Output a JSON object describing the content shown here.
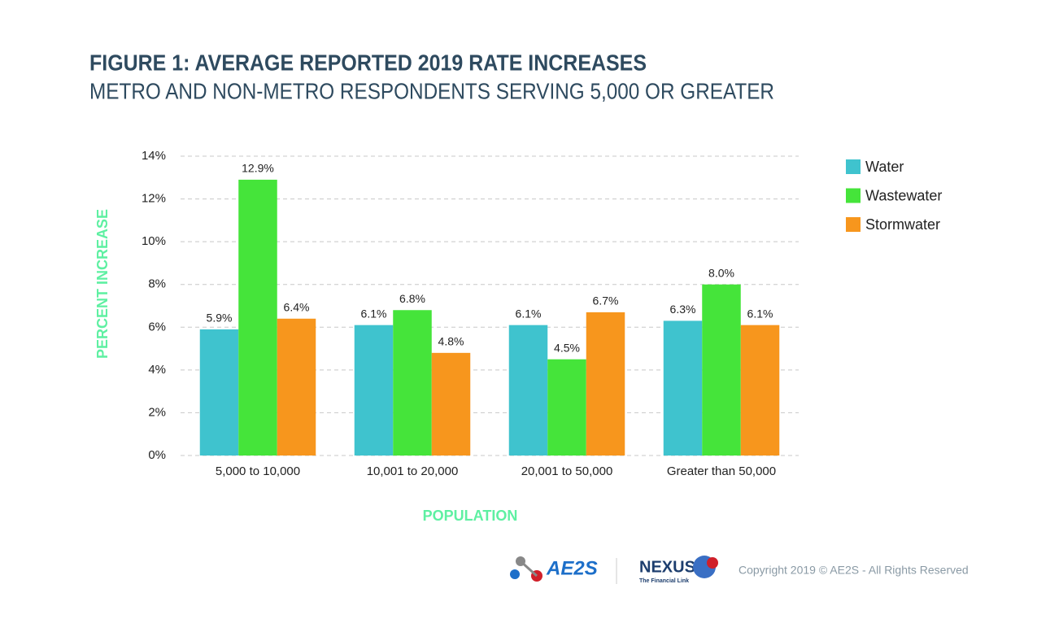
{
  "chart_data": {
    "type": "bar",
    "title": "FIGURE 1: AVERAGE REPORTED 2019 RATE INCREASES",
    "subtitle": "METRO AND NON-METRO RESPONDENTS SERVING 5,000 OR GREATER",
    "x_label": "POPULATION",
    "y_label": "PERCENT INCREASE",
    "categories": [
      "5,000 to 10,000",
      "10,001 to 20,000",
      "20,001 to 50,000",
      "Greater than 50,000"
    ],
    "series": [
      {
        "name": "Water",
        "color": "#3fc3ce",
        "values": [
          5.9,
          6.1,
          6.1,
          6.3
        ],
        "value_labels": [
          "5.9%",
          "6.1%",
          "6.1%",
          "6.3%"
        ]
      },
      {
        "name": "Wastewater",
        "color": "#45e43a",
        "values": [
          12.9,
          6.8,
          4.5,
          8.0
        ],
        "value_labels": [
          "12.9%",
          "6.8%",
          "4.5%",
          "8.0%"
        ]
      },
      {
        "name": "Stormwater",
        "color": "#f7961d",
        "values": [
          6.4,
          4.8,
          6.7,
          6.1
        ],
        "value_labels": [
          "6.4%",
          "4.8%",
          "6.7%",
          "6.1%"
        ]
      }
    ],
    "ylim": [
      0,
      14
    ],
    "yticks": [
      {
        "value": 0,
        "label": "0%"
      },
      {
        "value": 2,
        "label": "2%"
      },
      {
        "value": 4,
        "label": "4%"
      },
      {
        "value": 6,
        "label": "6%"
      },
      {
        "value": 8,
        "label": "8%"
      },
      {
        "value": 10,
        "label": "10%"
      },
      {
        "value": 12,
        "label": "12%"
      },
      {
        "value": 14,
        "label": "14%"
      }
    ],
    "grid": true,
    "legend": "right"
  },
  "footer": {
    "logos": [
      "AE2S",
      "NEXUS",
      "The Financial Link"
    ],
    "copyright": "Copyright 2019 © AE2S - All Rights Reserved"
  }
}
